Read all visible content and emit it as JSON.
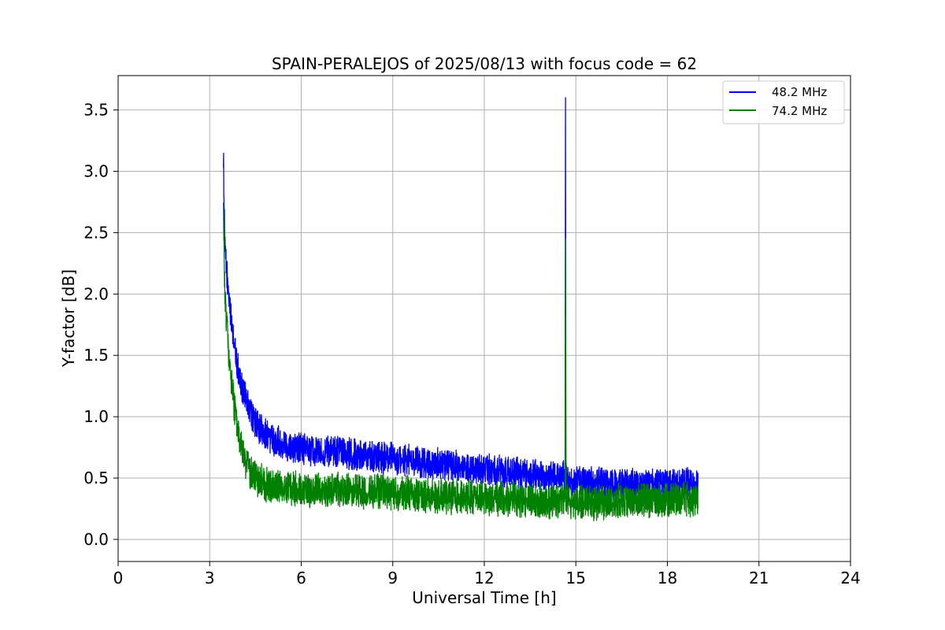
{
  "chart_data": {
    "type": "line",
    "title": "SPAIN-PERALEJOS of 2025/08/13 with focus code = 62",
    "xlabel": "Universal Time [h]",
    "ylabel": "Y-factor [dB]",
    "xlim": [
      0,
      24
    ],
    "ylim": [
      -0.18,
      3.78
    ],
    "x_ticks": [
      0,
      3,
      6,
      9,
      12,
      15,
      18,
      21,
      24
    ],
    "y_ticks": [
      0.0,
      0.5,
      1.0,
      1.5,
      2.0,
      2.5,
      3.0,
      3.5
    ],
    "x_tick_labels": [
      "0",
      "3",
      "6",
      "9",
      "12",
      "15",
      "18",
      "21",
      "24"
    ],
    "y_tick_labels": [
      "0.0",
      "0.5",
      "1.0",
      "1.5",
      "2.0",
      "2.5",
      "3.0",
      "3.5"
    ],
    "grid": true,
    "legend_position": "top-right",
    "series": [
      {
        "name": "48.2 MHz",
        "color": "#0000ff",
        "x": [
          3.45,
          3.5,
          3.6,
          3.7,
          3.8,
          3.9,
          4.0,
          4.2,
          4.4,
          4.6,
          4.8,
          5.0,
          5.5,
          6.0,
          6.5,
          7.0,
          7.5,
          8.0,
          8.5,
          9.0,
          9.5,
          10.0,
          10.5,
          11.0,
          11.5,
          12.0,
          12.5,
          13.0,
          13.5,
          14.0,
          14.5,
          14.65,
          14.66,
          14.67,
          14.8,
          15.0,
          15.5,
          16.0,
          16.5,
          17.0,
          17.5,
          18.0,
          18.5,
          19.0
        ],
        "y": [
          3.12,
          2.35,
          2.05,
          1.8,
          1.6,
          1.42,
          1.3,
          1.12,
          1.0,
          0.92,
          0.87,
          0.83,
          0.77,
          0.74,
          0.72,
          0.71,
          0.7,
          0.68,
          0.67,
          0.66,
          0.64,
          0.62,
          0.61,
          0.6,
          0.58,
          0.57,
          0.55,
          0.54,
          0.53,
          0.52,
          0.5,
          0.52,
          3.6,
          0.5,
          0.48,
          0.47,
          0.46,
          0.45,
          0.45,
          0.44,
          0.44,
          0.44,
          0.45,
          0.46
        ],
        "noise_amplitude": 0.12
      },
      {
        "name": "74.2 MHz",
        "color": "#008000",
        "x": [
          3.45,
          3.5,
          3.6,
          3.7,
          3.8,
          3.9,
          4.0,
          4.2,
          4.4,
          4.6,
          4.8,
          5.0,
          5.5,
          6.0,
          6.5,
          7.0,
          7.5,
          8.0,
          8.5,
          9.0,
          9.5,
          10.0,
          10.5,
          11.0,
          11.5,
          12.0,
          12.5,
          13.0,
          13.5,
          14.0,
          14.5,
          14.65,
          14.66,
          14.67,
          14.8,
          15.0,
          15.5,
          16.0,
          16.5,
          17.0,
          17.5,
          18.0,
          18.5,
          19.0
        ],
        "y": [
          2.65,
          1.95,
          1.6,
          1.3,
          1.1,
          0.92,
          0.8,
          0.62,
          0.53,
          0.48,
          0.45,
          0.43,
          0.42,
          0.41,
          0.4,
          0.4,
          0.4,
          0.39,
          0.39,
          0.38,
          0.37,
          0.36,
          0.36,
          0.35,
          0.35,
          0.34,
          0.33,
          0.33,
          0.32,
          0.31,
          0.31,
          0.33,
          2.45,
          0.32,
          0.3,
          0.3,
          0.3,
          0.3,
          0.31,
          0.31,
          0.31,
          0.32,
          0.32,
          0.33
        ],
        "noise_amplitude": 0.13
      }
    ]
  }
}
